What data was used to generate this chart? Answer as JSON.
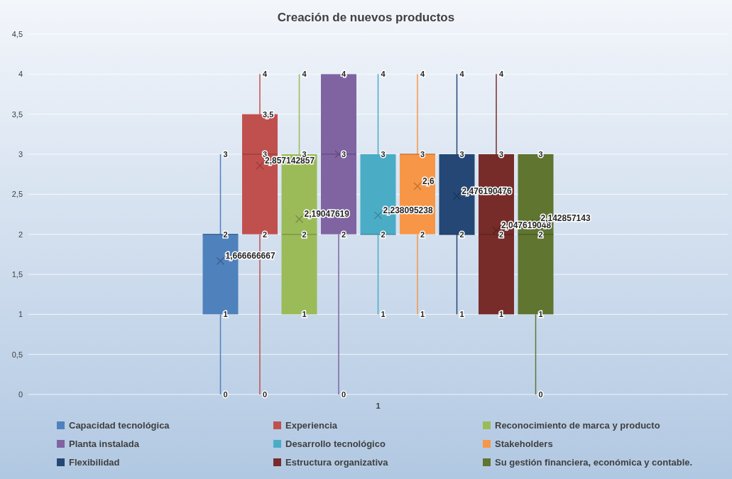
{
  "chart_data": {
    "type": "box",
    "title": "Creación de nuevos productos",
    "categories": [
      "1"
    ],
    "ylim": [
      0,
      4.5
    ],
    "yticks": [
      0,
      {
        "value": 0.5,
        "label": "0,5"
      },
      1,
      {
        "value": 1.5,
        "label": "1,5"
      },
      2,
      {
        "value": 2.5,
        "label": "2,5"
      },
      3,
      {
        "value": 3.5,
        "label": "3,5"
      },
      4,
      {
        "value": 4.5,
        "label": "4,5"
      }
    ],
    "grid": "y",
    "legend": "bottom",
    "series": [
      {
        "name": "Capacidad tecnológica",
        "color": "#4f81bd",
        "boxes": [
          {
            "low": 0,
            "q1": 1,
            "median": 2,
            "q3": 2,
            "high": 3,
            "mean": 1.666666667
          }
        ]
      },
      {
        "name": "Experiencia",
        "color": "#c0504d",
        "boxes": [
          {
            "low": 0,
            "q1": 2,
            "median": 3,
            "q3": 3.5,
            "high": 4,
            "mean": 2.857142857
          }
        ]
      },
      {
        "name": "Reconocimiento de marca y producto",
        "color": "#9bbb59",
        "boxes": [
          {
            "low": 1,
            "q1": 1,
            "median": 2,
            "q3": 3,
            "high": 4,
            "mean": 2.19047619
          }
        ]
      },
      {
        "name": "Planta instalada",
        "color": "#8064a2",
        "boxes": [
          {
            "low": 0,
            "q1": 2,
            "median": 3,
            "q3": 4,
            "high": 4,
            "mean": 3
          }
        ]
      },
      {
        "name": "Desarrollo tecnológico",
        "color": "#4bacc6",
        "boxes": [
          {
            "low": 1,
            "q1": 2,
            "median": 2,
            "q3": 3,
            "high": 4,
            "mean": 2.238095238
          }
        ]
      },
      {
        "name": "Stakeholders",
        "color": "#f79646",
        "boxes": [
          {
            "low": 1,
            "q1": 2,
            "median": 3,
            "q3": 3,
            "high": 4,
            "mean": 2.6
          }
        ]
      },
      {
        "name": "Flexibilidad",
        "color": "#254775",
        "boxes": [
          {
            "low": 1,
            "q1": 2,
            "median": 2,
            "q3": 3,
            "high": 4,
            "mean": 2.476190476
          }
        ]
      },
      {
        "name": "Estructura organizativa",
        "color": "#772c2a",
        "boxes": [
          {
            "low": 1,
            "q1": 1,
            "median": 2,
            "q3": 3,
            "high": 4,
            "mean": 2.047619048
          }
        ]
      },
      {
        "name": "Su gestión financiera, económica y contable.",
        "color": "#5f7530",
        "boxes": [
          {
            "low": 0,
            "q1": 1,
            "median": 2,
            "q3": 3,
            "high": 3,
            "mean": 2.142857143
          }
        ]
      }
    ],
    "annotations": [
      "0",
      "1",
      "2",
      "3",
      "1,666666667",
      "0",
      "2",
      "3",
      "3,5",
      "4",
      "2,857142857",
      "1",
      "2",
      "3",
      "4",
      "2,19047619",
      "0",
      "2",
      "3",
      "4",
      "1",
      "2",
      "3",
      "4",
      "2,238095238",
      "1",
      "2",
      "3",
      "4",
      "2,6",
      "1",
      "2",
      "3",
      "4",
      "2,476190476",
      "1",
      "2",
      "3",
      "4",
      "2,047619048",
      "0",
      "1",
      "2",
      "3",
      "2,142857143"
    ]
  }
}
